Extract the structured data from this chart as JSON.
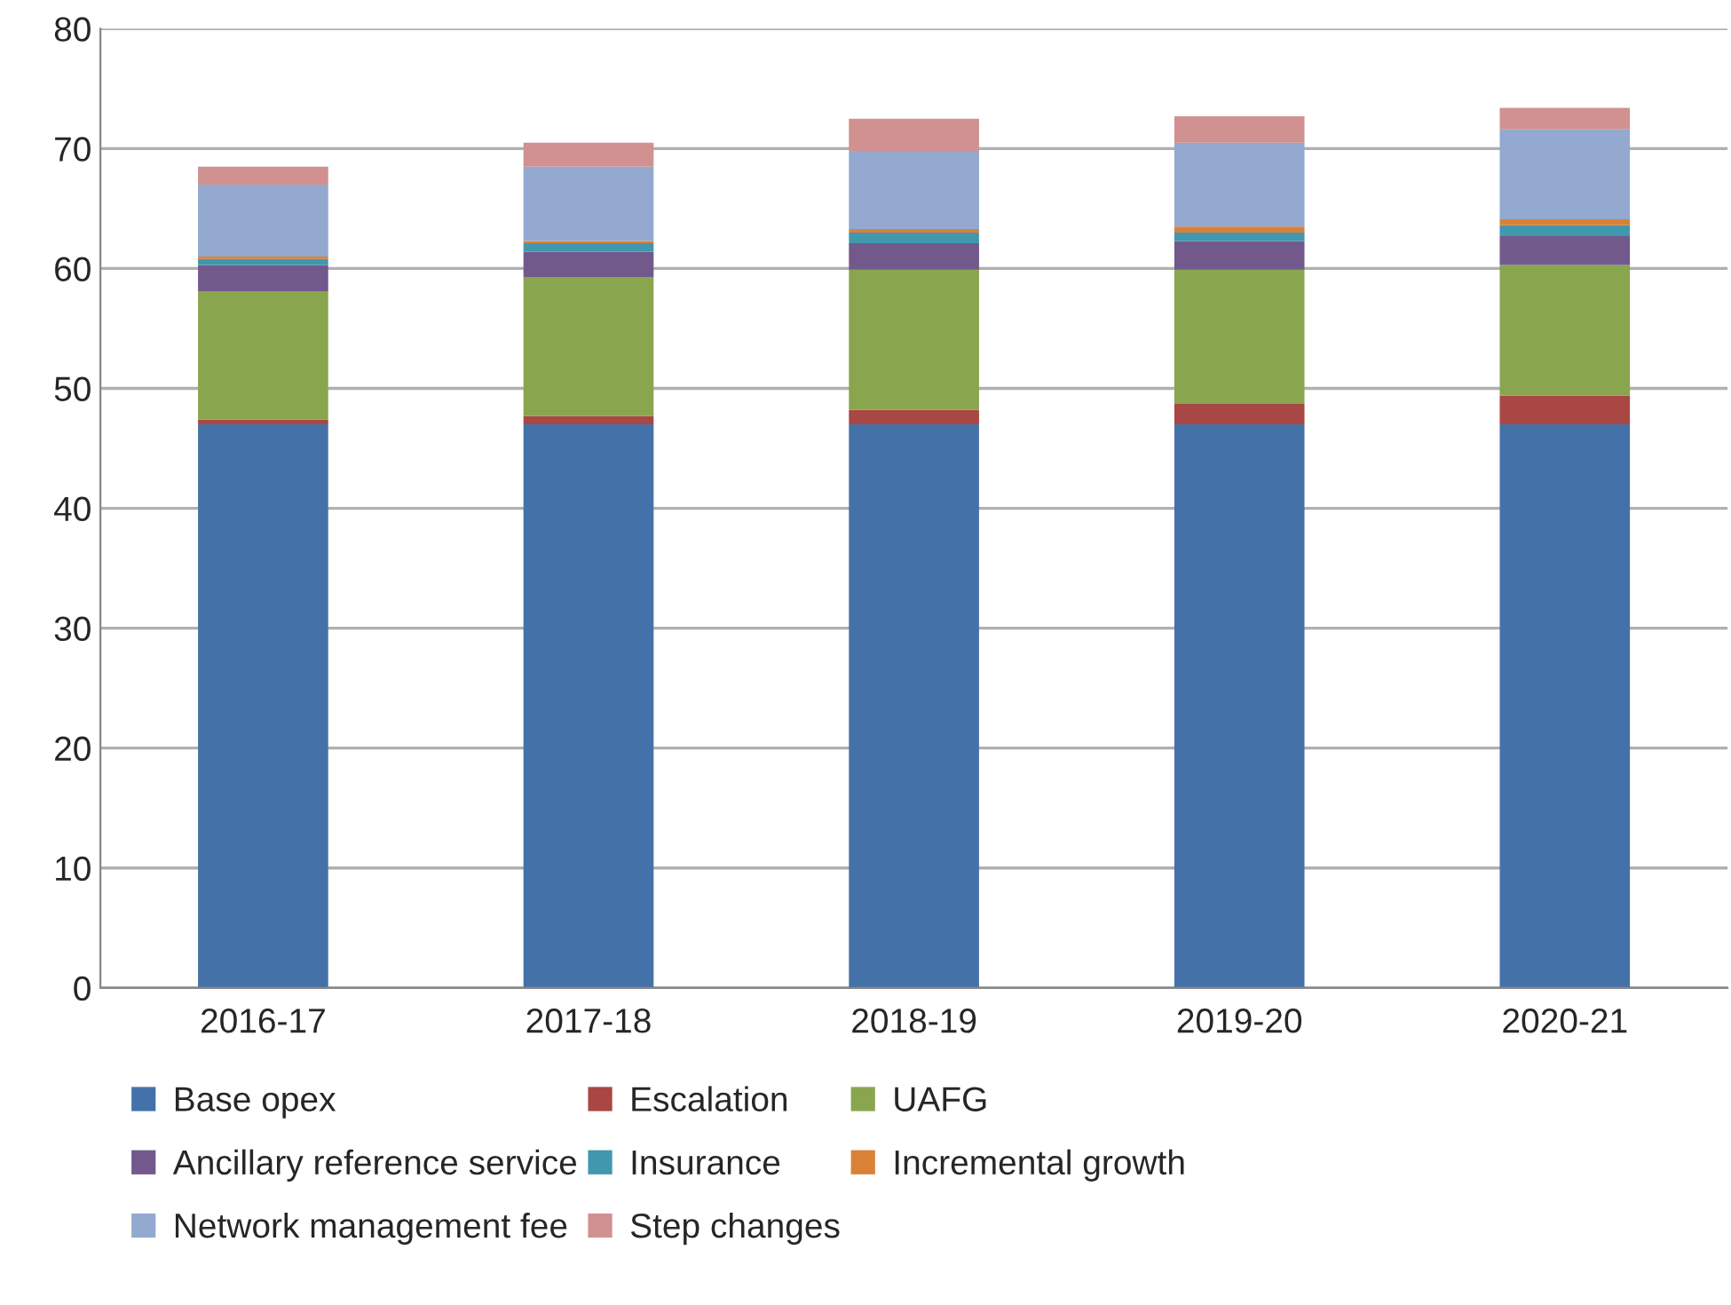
{
  "chart_data": {
    "type": "bar",
    "stacked": true,
    "categories": [
      "2016-17",
      "2017-18",
      "2018-19",
      "2019-20",
      "2020-21"
    ],
    "series": [
      {
        "name": "Base opex",
        "color": "#4472a8",
        "values": [
          47.0,
          47.0,
          47.0,
          47.0,
          47.0
        ]
      },
      {
        "name": "Escalation",
        "color": "#a84744",
        "values": [
          0.4,
          0.7,
          1.2,
          1.7,
          2.4
        ]
      },
      {
        "name": "UAFG",
        "color": "#89a54e",
        "values": [
          10.7,
          11.6,
          11.7,
          11.2,
          10.9
        ]
      },
      {
        "name": "Ancillary reference service",
        "color": "#71598c",
        "values": [
          2.2,
          2.1,
          2.2,
          2.4,
          2.4
        ]
      },
      {
        "name": "Insurance",
        "color": "#4197ad",
        "values": [
          0.5,
          0.7,
          0.9,
          0.7,
          0.9
        ]
      },
      {
        "name": "Incremental growth",
        "color": "#da8138",
        "values": [
          0.2,
          0.2,
          0.3,
          0.5,
          0.5
        ]
      },
      {
        "name": "Network management fee",
        "color": "#94a9cf",
        "values": [
          6.0,
          6.2,
          6.5,
          7.0,
          7.5
        ]
      },
      {
        "name": "Step changes",
        "color": "#d09190",
        "values": [
          1.5,
          2.0,
          2.7,
          2.2,
          1.8
        ]
      }
    ],
    "ylim": [
      0,
      80
    ],
    "yticks": [
      0,
      10,
      20,
      30,
      40,
      50,
      60,
      70,
      80
    ],
    "grid": "y",
    "legend": "bottom"
  }
}
